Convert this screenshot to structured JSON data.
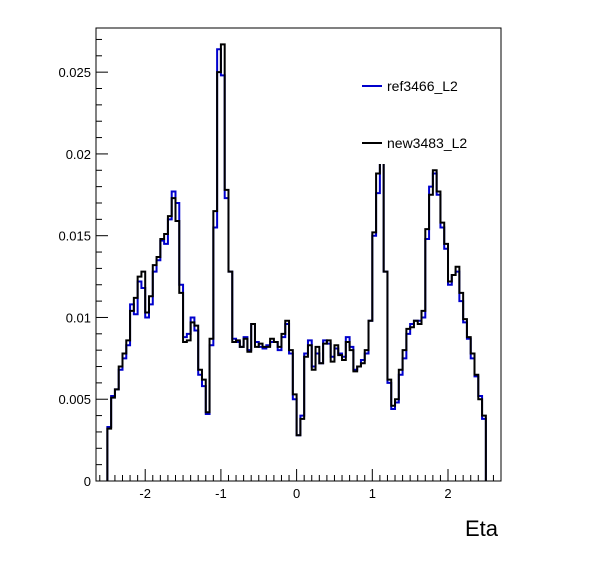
{
  "chart_data": {
    "type": "line",
    "title": "",
    "xlabel": "Eta",
    "ylabel": "",
    "xlim": [
      -2.65,
      2.7
    ],
    "ylim": [
      0,
      0.0277
    ],
    "x_ticks": [
      {
        "value": -2,
        "label": "-2"
      },
      {
        "value": -1,
        "label": "-1"
      },
      {
        "value": 0,
        "label": "0"
      },
      {
        "value": 1,
        "label": "1"
      },
      {
        "value": 2,
        "label": "2"
      }
    ],
    "y_ticks": [
      {
        "value": 0,
        "label": "0"
      },
      {
        "value": 0.005,
        "label": "0.005"
      },
      {
        "value": 0.01,
        "label": "0.01"
      },
      {
        "value": 0.015,
        "label": "0.015"
      },
      {
        "value": 0.02,
        "label": "0.02"
      },
      {
        "value": 0.025,
        "label": "0.025"
      }
    ],
    "bin_edges": [
      -2.5,
      -2.45,
      -2.4,
      -2.35,
      -2.3,
      -2.25,
      -2.2,
      -2.15,
      -2.1,
      -2.05,
      -2.0,
      -1.95,
      -1.9,
      -1.85,
      -1.8,
      -1.75,
      -1.7,
      -1.65,
      -1.6,
      -1.55,
      -1.5,
      -1.45,
      -1.4,
      -1.35,
      -1.3,
      -1.25,
      -1.2,
      -1.15,
      -1.1,
      -1.05,
      -1.0,
      -0.95,
      -0.9,
      -0.85,
      -0.8,
      -0.75,
      -0.7,
      -0.65,
      -0.6,
      -0.55,
      -0.5,
      -0.45,
      -0.4,
      -0.35,
      -0.3,
      -0.25,
      -0.2,
      -0.15,
      -0.1,
      -0.05,
      0.0,
      0.05,
      0.1,
      0.15,
      0.2,
      0.25,
      0.3,
      0.35,
      0.4,
      0.45,
      0.5,
      0.55,
      0.6,
      0.65,
      0.7,
      0.75,
      0.8,
      0.85,
      0.9,
      0.95,
      1.0,
      1.05,
      1.1,
      1.15,
      1.2,
      1.25,
      1.3,
      1.35,
      1.4,
      1.45,
      1.5,
      1.55,
      1.6,
      1.65,
      1.7,
      1.75,
      1.8,
      1.85,
      1.9,
      1.95,
      2.0,
      2.05,
      2.1,
      2.15,
      2.2,
      2.25,
      2.3,
      2.35,
      2.4,
      2.45,
      2.5
    ],
    "series": [
      {
        "name": "ref3466_L2",
        "color": "#0000cc",
        "values": [
          0.0033,
          0.0052,
          0.0056,
          0.0068,
          0.0075,
          0.0083,
          0.0108,
          0.0102,
          0.0122,
          0.0118,
          0.01,
          0.0108,
          0.0128,
          0.0135,
          0.0147,
          0.0145,
          0.016,
          0.0177,
          0.017,
          0.012,
          0.0088,
          0.009,
          0.01,
          0.0092,
          0.0065,
          0.0058,
          0.0041,
          0.0083,
          0.0155,
          0.0264,
          0.0248,
          0.0173,
          0.0128,
          0.0087,
          0.0085,
          0.0082,
          0.0088,
          0.008,
          0.0096,
          0.0085,
          0.0082,
          0.0081,
          0.0083,
          0.0085,
          0.0085,
          0.008,
          0.0088,
          0.0096,
          0.0078,
          0.005,
          0.0028,
          0.004,
          0.0078,
          0.0086,
          0.007,
          0.0078,
          0.0072,
          0.0086,
          0.0084,
          0.0076,
          0.0081,
          0.0078,
          0.0076,
          0.0088,
          0.0082,
          0.0068,
          0.007,
          0.0074,
          0.0078,
          0.0098,
          0.015,
          0.0176,
          0.0196,
          0.0128,
          0.006,
          0.0044,
          0.0048,
          0.0065,
          0.0075,
          0.009,
          0.0096,
          0.0098,
          0.0098,
          0.01,
          0.0148,
          0.018,
          0.0188,
          0.0175,
          0.0155,
          0.0142,
          0.012,
          0.0126,
          0.0128,
          0.011,
          0.0097,
          0.0087,
          0.0075,
          0.0064,
          0.0052,
          0.0038
        ]
      },
      {
        "name": "new3483_L2",
        "color": "#000000",
        "values": [
          0.0032,
          0.0051,
          0.0056,
          0.007,
          0.0078,
          0.0086,
          0.0104,
          0.0112,
          0.0125,
          0.0128,
          0.0103,
          0.0113,
          0.0132,
          0.0137,
          0.0148,
          0.0151,
          0.0162,
          0.0173,
          0.0159,
          0.0115,
          0.0085,
          0.0086,
          0.0097,
          0.0095,
          0.0068,
          0.0062,
          0.0042,
          0.0087,
          0.0165,
          0.025,
          0.0267,
          0.0178,
          0.0128,
          0.0085,
          0.0086,
          0.0082,
          0.0087,
          0.0079,
          0.0096,
          0.0082,
          0.0084,
          0.0082,
          0.0082,
          0.0087,
          0.0085,
          0.0082,
          0.009,
          0.0098,
          0.008,
          0.0053,
          0.0028,
          0.0038,
          0.0076,
          0.0083,
          0.0068,
          0.0082,
          0.0072,
          0.0084,
          0.0086,
          0.0073,
          0.0083,
          0.0077,
          0.0074,
          0.0085,
          0.008,
          0.0067,
          0.007,
          0.0072,
          0.008,
          0.0098,
          0.0152,
          0.0188,
          0.02,
          0.0128,
          0.0062,
          0.0046,
          0.005,
          0.0068,
          0.008,
          0.0093,
          0.0094,
          0.0098,
          0.0096,
          0.0104,
          0.0154,
          0.0175,
          0.019,
          0.0177,
          0.0158,
          0.0145,
          0.0122,
          0.0126,
          0.0131,
          0.0115,
          0.0099,
          0.0088,
          0.0078,
          0.0065,
          0.005,
          0.004
        ]
      }
    ],
    "legend": {
      "position": "top-right",
      "entries": [
        {
          "label": "ref3466_L2",
          "color": "#0000cc"
        },
        {
          "label": "new3483_L2",
          "color": "#000000"
        }
      ]
    },
    "grid": false
  }
}
